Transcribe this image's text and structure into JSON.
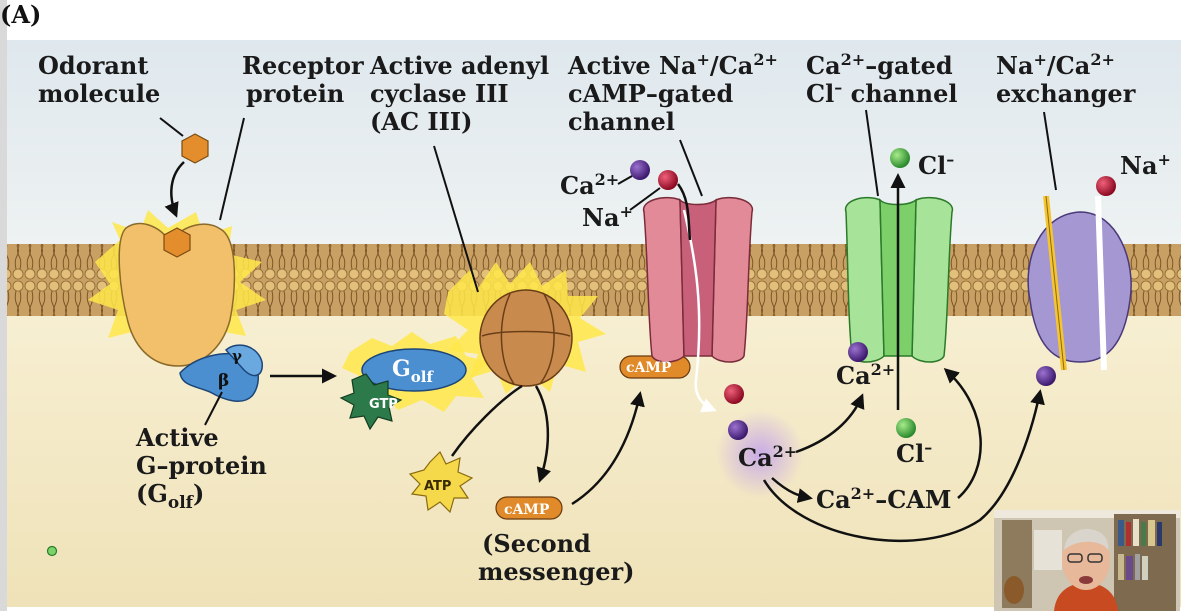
{
  "panel_label": "(A)",
  "labels": {
    "odorant_1": "Odorant",
    "odorant_2": "molecule",
    "receptor_1": "Receptor",
    "receptor_2": "protein",
    "adenyl_1": "Active adenyl",
    "adenyl_2": "cyclase III",
    "adenyl_3": "(AC III)",
    "cng_1": "Active Na",
    "cng_1_sup_a": "+",
    "cng_1_mid": "/Ca",
    "cng_1_sup_b": "2+",
    "cng_2": "cAMP–gated",
    "cng_3": "channel",
    "clch_1": "Ca",
    "clch_1_sup": "2+",
    "clch_1_rest": "–gated",
    "clch_2": "Cl",
    "clch_2_sup": "–",
    "clch_2_rest": " channel",
    "exch_1": "Na",
    "exch_1_sup_a": "+",
    "exch_1_mid": "/Ca",
    "exch_1_sup_b": "2+",
    "exch_2": "exchanger",
    "gprot_1": "Active",
    "gprot_2": "G–protein",
    "gprot_3a": "(G",
    "gprot_3_sub": "olf",
    "gprot_3b": ")",
    "second_1": "(Second",
    "second_2": "messenger)"
  },
  "ions": {
    "ca_top": "Ca",
    "ca_top_sup": "2+",
    "na_top": "Na",
    "na_top_sup": "+",
    "cl_top": "Cl",
    "cl_top_sup": "–",
    "na_right": "Na",
    "na_right_sup": "+",
    "ca_inside_cl": "Ca",
    "ca_inside_cl_sup": "2+",
    "cl_inside": "Cl",
    "cl_inside_sup": "–",
    "ca_center": "Ca",
    "ca_center_sup": "2+",
    "ca_cam": "Ca",
    "ca_cam_sup": "2+",
    "ca_cam_rest": "–CAM"
  },
  "molecules": {
    "gtp": "GTP",
    "atp": "ATP",
    "camp_channel": "cAMP",
    "camp_bottom": "cAMP",
    "golf_g": "G",
    "golf_sub": "olf",
    "beta": "β",
    "gamma": "γ"
  },
  "colors": {
    "membrane": "#c9a064",
    "cytoplasm": "#f6eed0",
    "extracellular": "#e4ecef",
    "receptor": "#f2c06a",
    "gprotein": "#4c8fd0",
    "adenyl": "#c98a4d",
    "cng_channel": "#e38a98",
    "cl_channel": "#a8e39a",
    "exchanger": "#a597d1",
    "calcium": "#5a2f8f",
    "sodium": "#c01b3a",
    "chloride": "#3ea63e",
    "camp": "#e08a2a",
    "atp": "#f5d94a",
    "gtp": "#2c7a4a"
  }
}
